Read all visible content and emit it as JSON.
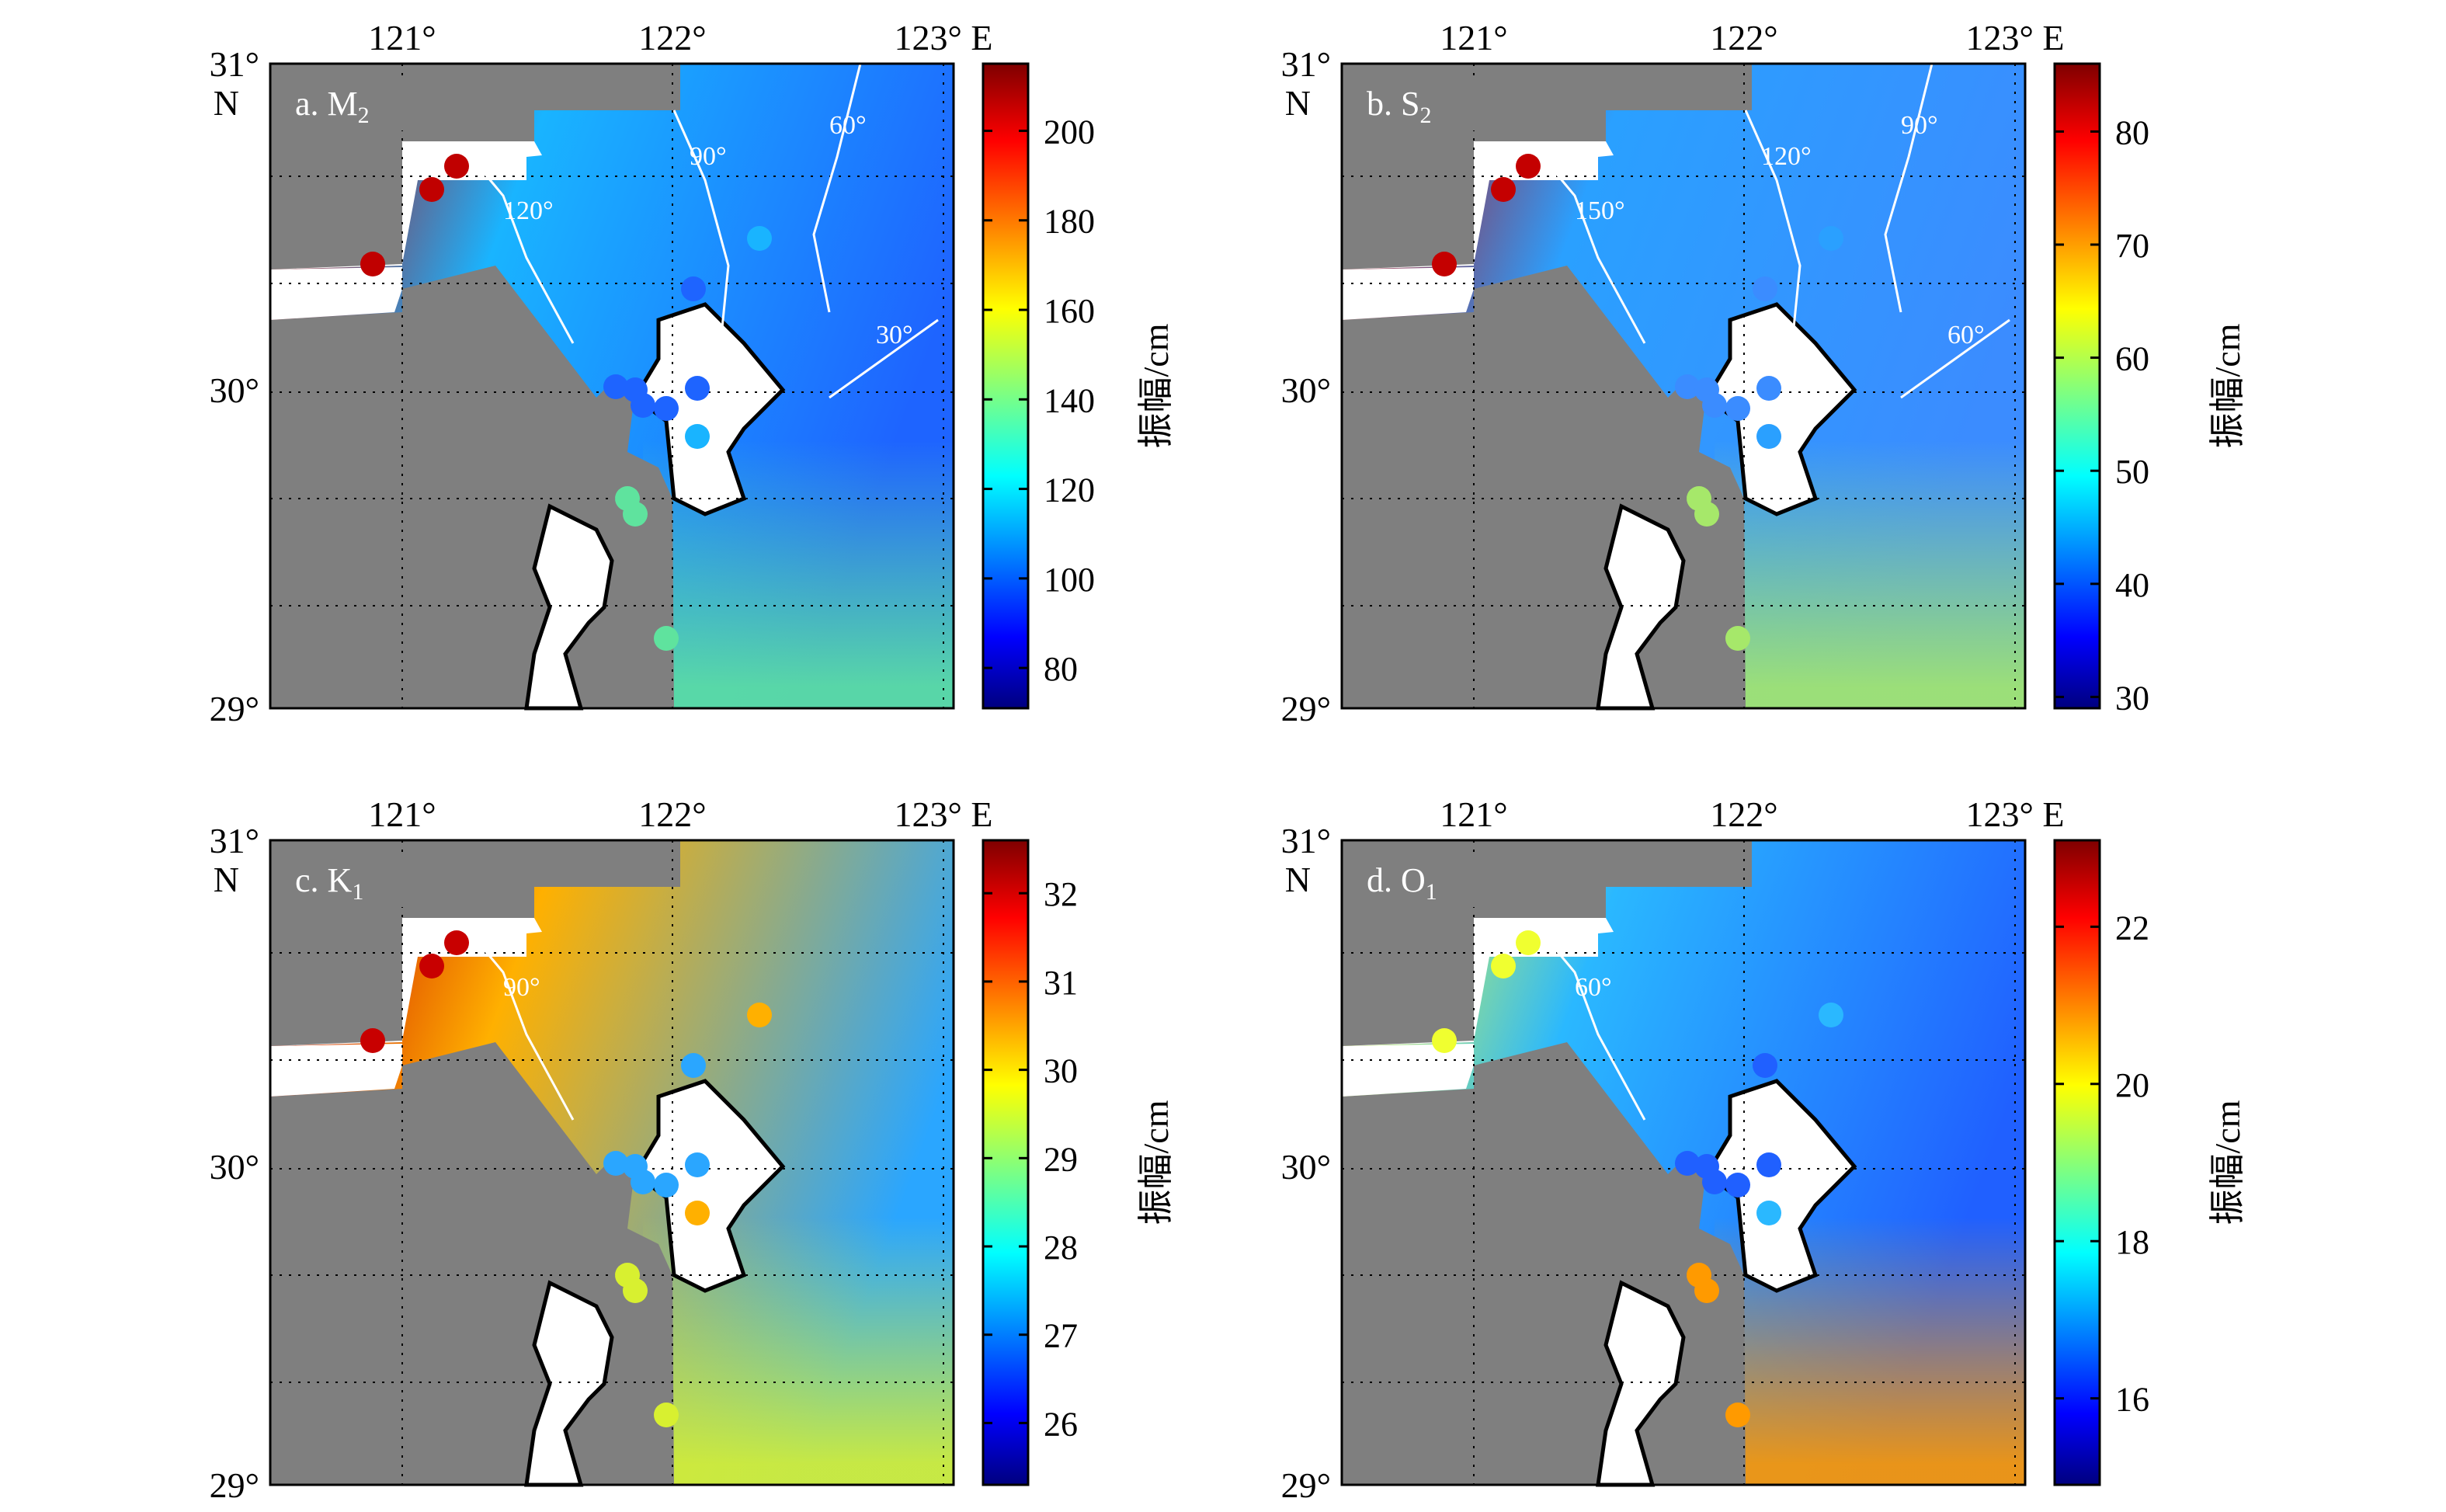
{
  "axes": {
    "lon_ticks": [
      "121°",
      "122°",
      "123° E"
    ],
    "lat_ticks": [
      "31°",
      "30°",
      "29°"
    ],
    "lat_unit": "N",
    "lon_range": [
      120.54,
      122.98
    ],
    "lat_range": [
      29.0,
      31.0
    ]
  },
  "colorbar_title": "振幅/cm",
  "panels": [
    {
      "id": "a",
      "label": "a. M",
      "sub": "2",
      "colorbar_ticks": [
        "200",
        "180",
        "160",
        "140",
        "120",
        "100",
        "80"
      ],
      "colorbar_range": [
        71,
        215
      ],
      "colors": {
        "west": "#c00000",
        "mid": "#19b4ff",
        "east": "#1e64ff",
        "south": "#5fe39e"
      },
      "contours": [
        "120°",
        "90°",
        "60°",
        "30°"
      ]
    },
    {
      "id": "b",
      "label": "b. S",
      "sub": "2",
      "colorbar_ticks": [
        "80",
        "70",
        "60",
        "50",
        "40",
        "30"
      ],
      "colorbar_range": [
        29,
        86
      ],
      "colors": {
        "west": "#c40000",
        "mid": "#2aa0ff",
        "east": "#3b8cff",
        "south": "#a6e86a"
      },
      "contours": [
        "150°",
        "120°",
        "90°",
        "60°"
      ]
    },
    {
      "id": "c",
      "label": "c. K",
      "sub": "1",
      "colorbar_ticks": [
        "32",
        "31",
        "30",
        "29",
        "28",
        "27",
        "26"
      ],
      "colorbar_range": [
        25.3,
        32.6
      ],
      "colors": {
        "west": "#c80000",
        "mid": "#ffb000",
        "east": "#2aa6ff",
        "south": "#d8f030"
      },
      "contours": [
        "90°"
      ]
    },
    {
      "id": "d",
      "label": "d. O",
      "sub": "1",
      "colorbar_ticks": [
        "22",
        "20",
        "18",
        "16"
      ],
      "colorbar_range": [
        14.9,
        23.1
      ],
      "colors": {
        "west": "#f0ff30",
        "mid": "#2ab8ff",
        "east": "#2060ff",
        "south": "#ff9a00"
      },
      "contours": [
        "60°"
      ]
    }
  ]
}
